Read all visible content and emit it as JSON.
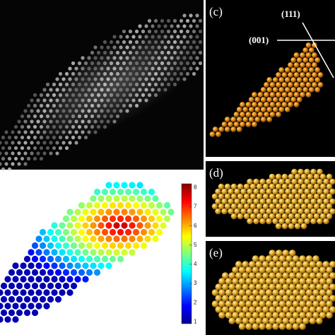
{
  "panels": {
    "c": {
      "label": "(c)",
      "plane_a": "(111)",
      "plane_b": "(001)"
    },
    "d": {
      "label": "(d)"
    },
    "e": {
      "label": "(e)"
    }
  },
  "colorbar": {
    "lim": [
      0.9,
      8.2
    ],
    "ticks": [
      1,
      2,
      3,
      4,
      5,
      6,
      7,
      8
    ]
  }
}
